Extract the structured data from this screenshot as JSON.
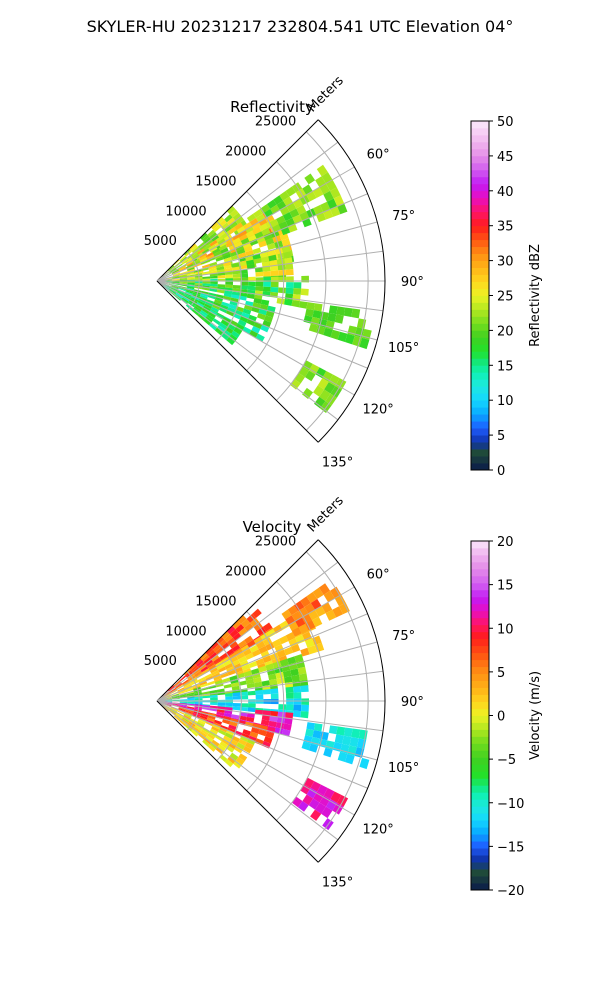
{
  "figure": {
    "title": "SKYLER-HU  20231217  232804.541 UTC Elevation 04°"
  },
  "chart_data": [
    {
      "type": "heatmap",
      "title": "Reflectivity",
      "radial_label": "Meters",
      "radial_ticks": [
        5000,
        10000,
        15000,
        20000,
        25000
      ],
      "range_limit_m": 27000,
      "azimuth_ticks": [
        "60°",
        "75°",
        "90°",
        "105°",
        "120°",
        "135°"
      ],
      "azimuth_range_deg": [
        45,
        135
      ],
      "grid": true,
      "colorbar": {
        "label": "Reflectivity dBZ",
        "min": 0,
        "max": 50,
        "ticks": [
          "0",
          "5",
          "10",
          "15",
          "20",
          "25",
          "30",
          "35",
          "40",
          "45",
          "50"
        ]
      },
      "colormap": [
        [
          0,
          "#0a1a4a"
        ],
        [
          2.5,
          "#1f4a3a"
        ],
        [
          4,
          "#0f33a8"
        ],
        [
          6,
          "#1f5cff"
        ],
        [
          8,
          "#08a8ff"
        ],
        [
          10,
          "#14d7ff"
        ],
        [
          12,
          "#1de7e0"
        ],
        [
          14,
          "#0ff1b2"
        ],
        [
          15.5,
          "#14e777"
        ],
        [
          17,
          "#22e22b"
        ],
        [
          19,
          "#3fd021"
        ],
        [
          21,
          "#76dd1e"
        ],
        [
          23,
          "#b3e820"
        ],
        [
          25,
          "#ecf224"
        ],
        [
          27,
          "#ffd71e"
        ],
        [
          29,
          "#ffb417"
        ],
        [
          31,
          "#ff8e14"
        ],
        [
          33,
          "#ff5512"
        ],
        [
          35,
          "#ff1c1c"
        ],
        [
          37,
          "#ff1468"
        ],
        [
          39,
          "#e80ec1"
        ],
        [
          41,
          "#c21bf4"
        ],
        [
          43,
          "#d15cf0"
        ],
        [
          45,
          "#e58fe8"
        ],
        [
          47,
          "#f0b6ef"
        ],
        [
          50,
          "#fbe9fb"
        ]
      ],
      "regions": [
        {
          "az": [
            45,
            62
          ],
          "r": [
            0,
            12000
          ],
          "v": 23,
          "spread": 4
        },
        {
          "az": [
            55,
            68
          ],
          "r": [
            4000,
            15000
          ],
          "v": 27,
          "spread": 5
        },
        {
          "az": [
            62,
            80
          ],
          "r": [
            2000,
            16000
          ],
          "v": 24,
          "spread": 5
        },
        {
          "az": [
            75,
            88
          ],
          "r": [
            0,
            16000
          ],
          "v": 23,
          "spread": 5
        },
        {
          "az": [
            88,
            100
          ],
          "r": [
            0,
            18000
          ],
          "v": 19,
          "spread": 5
        },
        {
          "az": [
            100,
            118
          ],
          "r": [
            0,
            14000
          ],
          "v": 17,
          "spread": 4
        },
        {
          "az": [
            118,
            130
          ],
          "r": [
            0,
            11000
          ],
          "v": 16,
          "spread": 3
        },
        {
          "az": [
            55,
            68
          ],
          "r": [
            15000,
            24000
          ],
          "v": 21,
          "spread": 3
        },
        {
          "az": [
            98,
            106
          ],
          "r": [
            18000,
            26000
          ],
          "v": 20,
          "spread": 3
        },
        {
          "az": [
            118,
            126
          ],
          "r": [
            20000,
            25000
          ],
          "v": 21,
          "spread": 3
        }
      ]
    },
    {
      "type": "heatmap",
      "title": "Velocity",
      "radial_label": "Meters",
      "radial_ticks": [
        5000,
        10000,
        15000,
        20000,
        25000
      ],
      "range_limit_m": 27000,
      "azimuth_ticks": [
        "60°",
        "75°",
        "90°",
        "105°",
        "120°",
        "135°"
      ],
      "azimuth_range_deg": [
        45,
        135
      ],
      "grid": true,
      "colorbar": {
        "label": "Velocity (m/s)",
        "min": -20,
        "max": 20,
        "ticks": [
          "−20",
          "−15",
          "−10",
          "−5",
          "0",
          "5",
          "10",
          "15",
          "20"
        ]
      },
      "colormap": [
        [
          -20,
          "#0a1a4a"
        ],
        [
          -18,
          "#1f4a3a"
        ],
        [
          -16.5,
          "#0f33a8"
        ],
        [
          -15,
          "#1f5cff"
        ],
        [
          -13.5,
          "#08a8ff"
        ],
        [
          -12,
          "#14d7ff"
        ],
        [
          -10.5,
          "#1de7e0"
        ],
        [
          -9,
          "#0ff1b2"
        ],
        [
          -8,
          "#14e777"
        ],
        [
          -7,
          "#22e22b"
        ],
        [
          -5,
          "#3fd021"
        ],
        [
          -3,
          "#76dd1e"
        ],
        [
          -1.5,
          "#b3e820"
        ],
        [
          0,
          "#ecf224"
        ],
        [
          1.5,
          "#ffd71e"
        ],
        [
          3,
          "#ffb417"
        ],
        [
          5,
          "#ff8e14"
        ],
        [
          7,
          "#ff5512"
        ],
        [
          9,
          "#ff1c1c"
        ],
        [
          10.5,
          "#ff1468"
        ],
        [
          12,
          "#e80ec1"
        ],
        [
          13.5,
          "#c21bf4"
        ],
        [
          15,
          "#d15cf0"
        ],
        [
          17,
          "#e58fe8"
        ],
        [
          18.5,
          "#f0b6ef"
        ],
        [
          20,
          "#fbe9fb"
        ]
      ],
      "regions": [
        {
          "az": [
            45,
            58
          ],
          "r": [
            0,
            16000
          ],
          "v": 7,
          "spread": 3
        },
        {
          "az": [
            58,
            72
          ],
          "r": [
            0,
            20000
          ],
          "v": 2,
          "spread": 2
        },
        {
          "az": [
            72,
            84
          ],
          "r": [
            0,
            18000
          ],
          "v": -3,
          "spread": 3
        },
        {
          "az": [
            84,
            95
          ],
          "r": [
            0,
            18000
          ],
          "v": -11,
          "spread": 3
        },
        {
          "az": [
            95,
            103
          ],
          "r": [
            0,
            16000
          ],
          "v": 12,
          "spread": 3
        },
        {
          "az": [
            103,
            112
          ],
          "r": [
            0,
            14000
          ],
          "v": 8,
          "spread": 3
        },
        {
          "az": [
            112,
            130
          ],
          "r": [
            0,
            12000
          ],
          "v": 1,
          "spread": 3
        },
        {
          "az": [
            55,
            65
          ],
          "r": [
            18000,
            25000
          ],
          "v": 5,
          "spread": 3
        },
        {
          "az": [
            98,
            106
          ],
          "r": [
            18000,
            26000
          ],
          "v": -11,
          "spread": 2
        },
        {
          "az": [
            117,
            126
          ],
          "r": [
            20000,
            25000
          ],
          "v": 12,
          "spread": 2
        }
      ]
    }
  ]
}
